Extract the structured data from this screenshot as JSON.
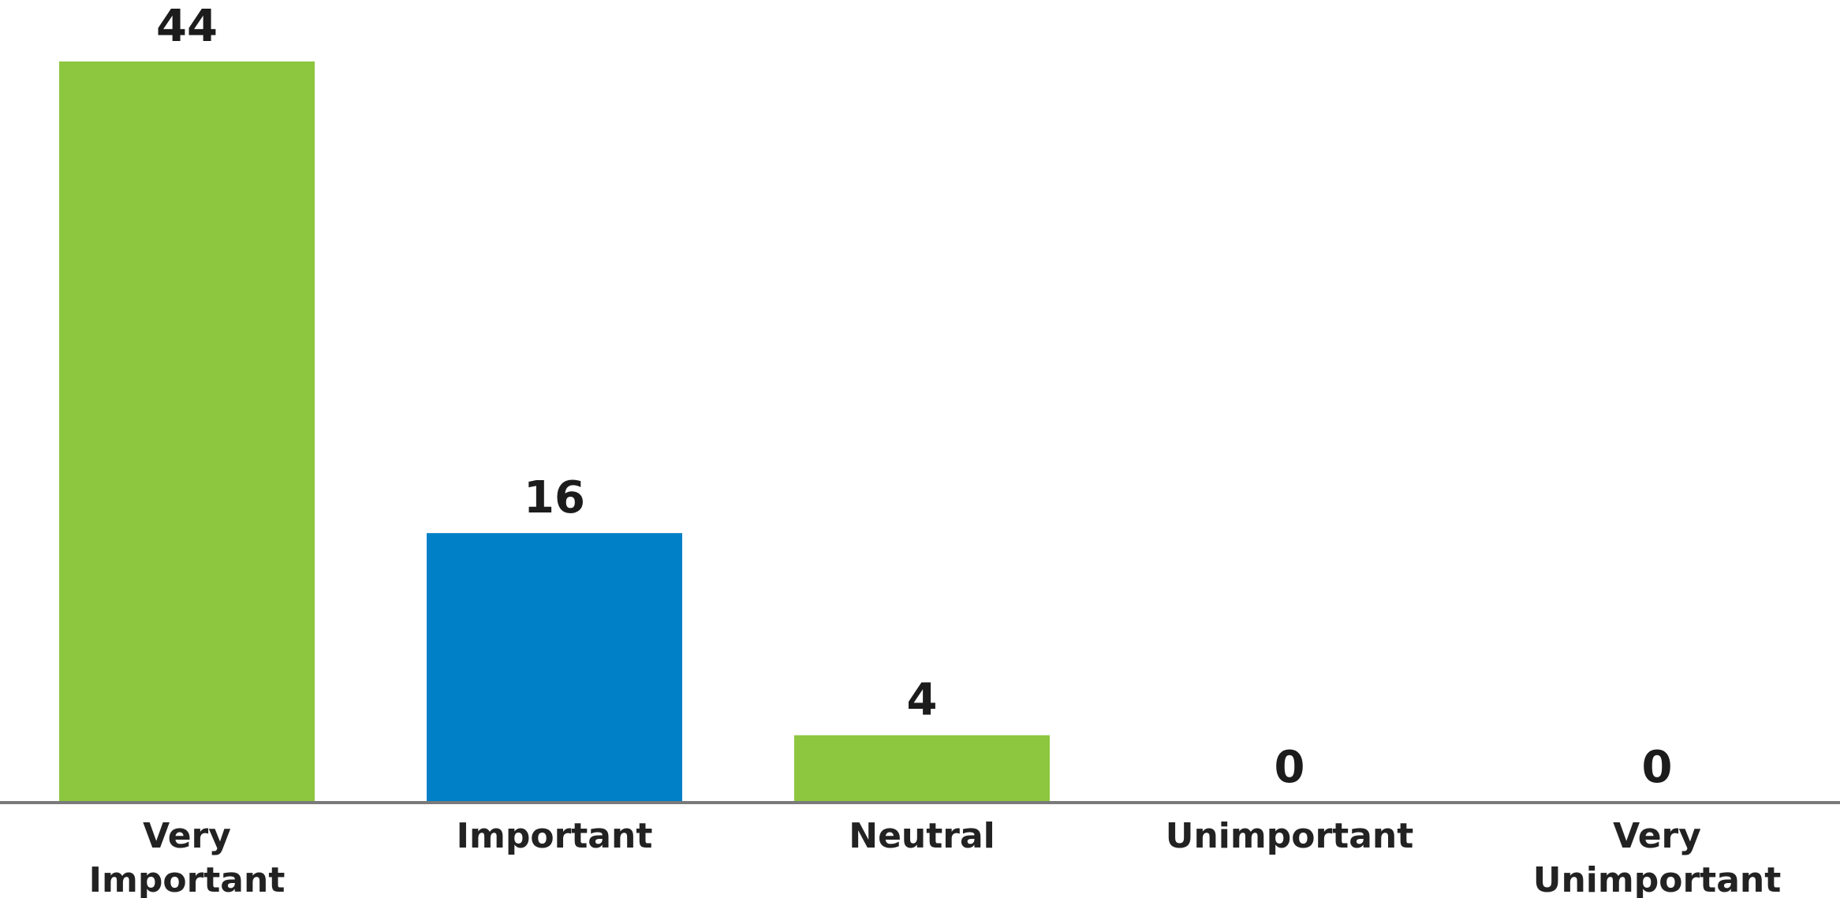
{
  "chart_data": {
    "type": "bar",
    "categories": [
      [
        "Very",
        "Important"
      ],
      [
        "Important"
      ],
      [
        "Neutral"
      ],
      [
        "Unimportant"
      ],
      [
        "Very",
        "Unimportant"
      ]
    ],
    "values": [
      44,
      16,
      4,
      0,
      0
    ],
    "data_labels": [
      "44",
      "16",
      "4",
      "0",
      "0"
    ],
    "bar_colors": [
      "#8dc63f",
      "#0080c6",
      "#8dc63f",
      "#8dc63f",
      "#8dc63f"
    ],
    "axis_color": "#7a7a7a",
    "ylim": [
      0,
      44
    ],
    "grid": false,
    "legend": "none"
  }
}
